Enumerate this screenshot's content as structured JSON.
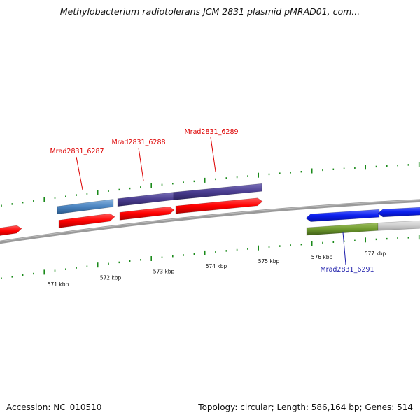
{
  "title": "Methylobacterium radiotolerans JCM 2831 plasmid pMRAD01, com...",
  "footer": {
    "accession": "Accession: NC_010510",
    "topology": "Topology: circular; Length: 586,164 bp; Genes: 514"
  },
  "colors": {
    "forward_label": "#dd0000",
    "reverse_label": "#1a1aaa",
    "tick": "#1a8a1a",
    "backbone": "#8a8a8a"
  },
  "scale_labels": [
    "571 kbp",
    "572 kbp",
    "573 kbp",
    "574 kbp",
    "575 kbp",
    "576 kbp",
    "577 kbp"
  ],
  "gene_labels": [
    {
      "name": "Mrad2831_6287",
      "strand": "forward"
    },
    {
      "name": "Mrad2831_6288",
      "strand": "forward"
    },
    {
      "name": "Mrad2831_6289",
      "strand": "forward"
    },
    {
      "name": "Mrad2831_6291",
      "strand": "reverse"
    }
  ],
  "genes": [
    {
      "color": "red",
      "strand": "forward"
    },
    {
      "color": "steelblue",
      "strand": "forward"
    },
    {
      "color": "red",
      "strand": "forward"
    },
    {
      "color": "purple",
      "strand": "forward"
    },
    {
      "color": "red",
      "strand": "forward"
    },
    {
      "color": "purple",
      "strand": "forward"
    },
    {
      "color": "red",
      "strand": "forward"
    },
    {
      "color": "blue",
      "strand": "reverse"
    },
    {
      "color": "blue",
      "strand": "reverse"
    },
    {
      "color": "olive",
      "strand": "reverse"
    },
    {
      "color": "grey",
      "strand": "reverse"
    }
  ]
}
